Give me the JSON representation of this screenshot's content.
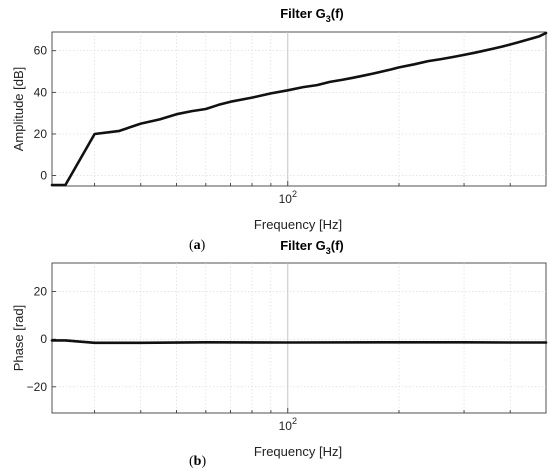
{
  "charts": [
    {
      "panel_label": "a",
      "title_main": "Filter G",
      "title_sub": "3",
      "title_tail": "(f)",
      "xlabel": "Frequency [Hz]",
      "ylabel": "Amplitude [dB]",
      "x_tick_base": "10",
      "x_tick_exp": "2",
      "y_ticks": [
        "0",
        "20",
        "40",
        "60"
      ]
    },
    {
      "panel_label": "b",
      "title_main": "Filter G",
      "title_sub": "3",
      "title_tail": "(f)",
      "xlabel": "Frequency [Hz]",
      "ylabel": "Phase [rad]",
      "x_tick_base": "10",
      "x_tick_exp": "2",
      "y_ticks": [
        "-20",
        "0",
        "20"
      ]
    }
  ],
  "chart_data": [
    {
      "type": "line",
      "title": "Filter G3(f)",
      "xlabel": "Frequency [Hz]",
      "ylabel": "Amplitude [dB]",
      "xscale": "log",
      "xlim": [
        23,
        500
      ],
      "ylim": [
        -5,
        69
      ],
      "grid": true,
      "series": [
        {
          "color": "#111111",
          "x": [
            23,
            25,
            30,
            35,
            40,
            45,
            50,
            55,
            60,
            65,
            70,
            80,
            90,
            100,
            110,
            120,
            130,
            140,
            150,
            160,
            170,
            180,
            190,
            200,
            220,
            240,
            260,
            280,
            300,
            320,
            340,
            360,
            380,
            400,
            420,
            440,
            460,
            480,
            500
          ],
          "y": [
            -4.5,
            -4.5,
            20,
            21.5,
            25,
            27,
            29.5,
            31,
            32,
            34,
            35.5,
            37.5,
            39.5,
            41,
            42.5,
            43.5,
            45,
            46,
            47,
            48,
            49,
            50,
            51,
            52,
            53.5,
            55,
            56,
            57,
            58,
            59,
            60,
            61,
            62,
            63,
            64,
            65,
            66,
            67,
            68.5
          ]
        }
      ]
    },
    {
      "type": "line",
      "title": "Filter G3(f)",
      "xlabel": "Frequency [Hz]",
      "ylabel": "Phase [rad]",
      "xscale": "log",
      "xlim": [
        23,
        500
      ],
      "ylim": [
        -31,
        32
      ],
      "grid": true,
      "series": [
        {
          "color": "#111111",
          "x": [
            23,
            25,
            30,
            40,
            60,
            100,
            200,
            300,
            400,
            500
          ],
          "y": [
            -0.5,
            -0.5,
            -1.5,
            -1.5,
            -1.3,
            -1.4,
            -1.3,
            -1.3,
            -1.4,
            -1.4
          ]
        }
      ]
    }
  ]
}
